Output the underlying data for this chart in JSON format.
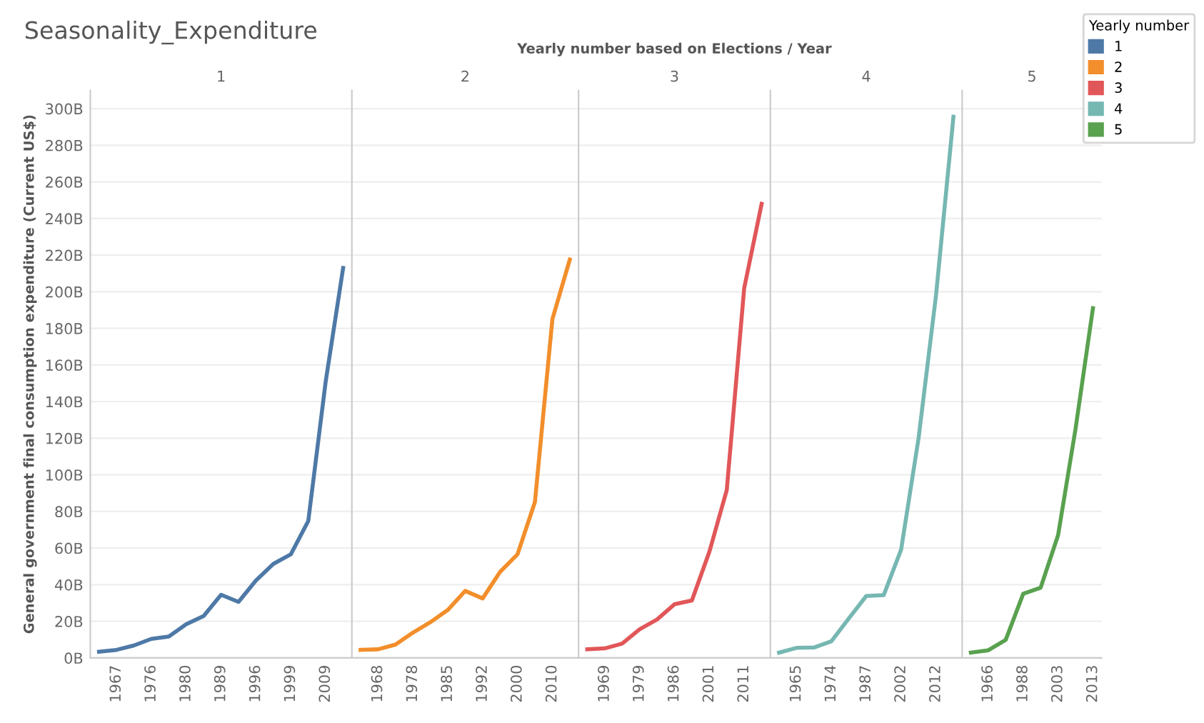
{
  "chart_data": [
    {
      "type": "line",
      "title": "Seasonality_Expenditure",
      "ylabel": "General government final consumption expenditure (Current US$)",
      "legend_title": "Yearly number",
      "legend": "right",
      "grid": "y",
      "subtitle": "1",
      "categories": [
        null,
        "1967",
        null,
        "1976",
        null,
        "1980",
        null,
        "1989",
        null,
        "1996",
        null,
        "1999",
        null,
        "2009",
        null
      ],
      "series": [
        {
          "name": "1",
          "color": "#4e79a7",
          "values": [
            3.4,
            4.4,
            6.8,
            10.4,
            11.7,
            18.4,
            22.9,
            34.5,
            30.6,
            42.3,
            51.4,
            56.6,
            74.8,
            151,
            213
          ]
        }
      ],
      "ylim": [
        0,
        310
      ],
      "yticks": [
        {
          "value": 0,
          "label": "0B"
        },
        {
          "value": 20,
          "label": "20B"
        },
        {
          "value": 40,
          "label": "40B"
        },
        {
          "value": 60,
          "label": "60B"
        },
        {
          "value": 80,
          "label": "80B"
        },
        {
          "value": 100,
          "label": "100B"
        },
        {
          "value": 120,
          "label": "120B"
        },
        {
          "value": 140,
          "label": "140B"
        },
        {
          "value": 160,
          "label": "160B"
        },
        {
          "value": 180,
          "label": "180B"
        },
        {
          "value": 200,
          "label": "200B"
        },
        {
          "value": 220,
          "label": "220B"
        },
        {
          "value": 240,
          "label": "240B"
        },
        {
          "value": 260,
          "label": "260B"
        },
        {
          "value": 280,
          "label": "280B"
        },
        {
          "value": 300,
          "label": "300B"
        }
      ]
    },
    {
      "type": "line",
      "subtitle": "2",
      "grid": "y",
      "tick_labels": "x",
      "ylim": [
        0,
        310
      ],
      "categories": [
        null,
        "1968",
        null,
        "1978",
        null,
        "1985",
        null,
        "1992",
        null,
        "2000",
        null,
        "2010",
        null
      ],
      "series": [
        {
          "name": "2",
          "color": "#f28e2b",
          "values": [
            4.4,
            4.7,
            7.3,
            13.8,
            19.5,
            26.2,
            36.6,
            32.5,
            47,
            56.6,
            85.2,
            185,
            217.6
          ]
        }
      ]
    },
    {
      "type": "line",
      "subtitle": "3",
      "xlabel": "Yearly number based on Elections / Year",
      "grid": "y",
      "tick_labels": "x",
      "ylim": [
        0,
        310
      ],
      "categories": [
        null,
        "1969",
        null,
        "1979",
        null,
        "1986",
        null,
        "2001",
        null,
        "2011",
        null
      ],
      "series": [
        {
          "name": "3",
          "color": "#e15759",
          "values": [
            4.7,
            5.2,
            7.8,
            15.6,
            21,
            29.3,
            31.4,
            57.9,
            91.7,
            202,
            248
          ]
        }
      ]
    },
    {
      "type": "line",
      "subtitle": "4",
      "grid": "y",
      "tick_labels": "x",
      "ylim": [
        0,
        310
      ],
      "categories": [
        null,
        "1965",
        null,
        "1974",
        null,
        "1987",
        null,
        "2002",
        null,
        "2012",
        null
      ],
      "series": [
        {
          "name": "4",
          "color": "#76b7b2",
          "values": [
            2.9,
            5.5,
            5.7,
            9.1,
            21.6,
            33.8,
            34.3,
            59.2,
            120,
            198,
            295.6
          ]
        }
      ]
    },
    {
      "type": "line",
      "subtitle": "5",
      "grid": "y",
      "tick_labels": "x",
      "ylim": [
        0,
        310
      ],
      "categories": [
        null,
        "1966",
        null,
        "1988",
        null,
        "2003",
        null,
        "2013"
      ],
      "series": [
        {
          "name": "5",
          "color": "#59a14f",
          "values": [
            2.9,
            4.2,
            9.9,
            35,
            38.4,
            67,
            125,
            191
          ]
        }
      ]
    }
  ]
}
